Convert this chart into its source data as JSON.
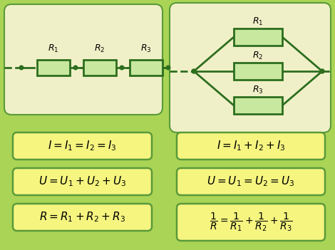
{
  "bg_color": "#aad455",
  "panel_color": "#f0f0c8",
  "resistor_fill": "#c8e8a0",
  "line_color": "#2d6e1e",
  "formula_bg": "#f5f580",
  "border_color": "#5a9a3a",
  "fig_w": 4.7,
  "fig_h": 3.51,
  "dpi": 100
}
